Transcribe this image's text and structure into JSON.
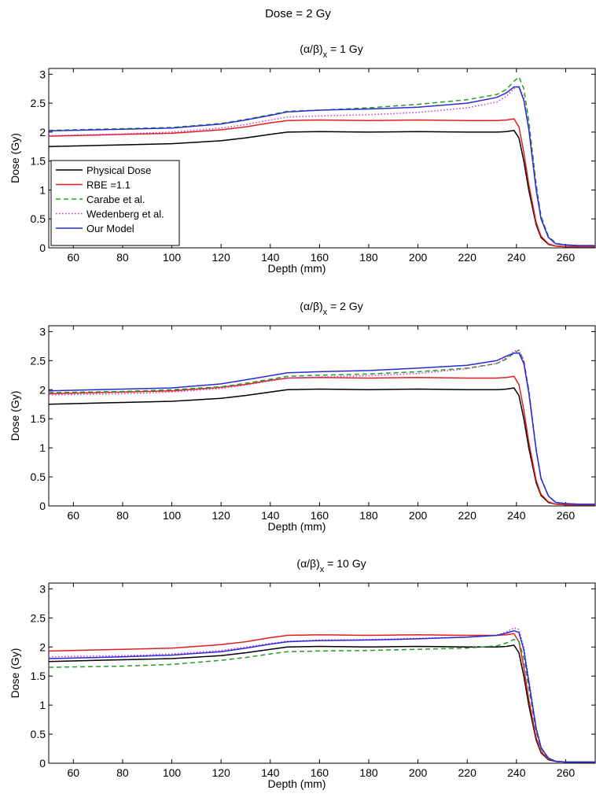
{
  "figure": {
    "title": "Dose = 2 Gy"
  },
  "colors": {
    "Physical Dose": "#000000",
    "RBE =1.1": "#e02020",
    "Carabe et al.": "#22a022",
    "Wedenberg et al.": "#cc33cc",
    "Our Model": "#2a2ad8"
  },
  "chart_data": [
    {
      "type": "line",
      "title": "(α/β)ₓ = 1 Gy",
      "xlabel": "Depth (mm)",
      "ylabel": "Dose (Gy)",
      "xlim": [
        50,
        272
      ],
      "ylim": [
        0,
        3.1
      ],
      "xticks": [
        60,
        80,
        100,
        120,
        140,
        160,
        180,
        200,
        220,
        240,
        260
      ],
      "yticks": [
        0,
        0.5,
        1,
        1.5,
        2,
        2.5,
        3
      ],
      "legend": "bottom-left",
      "x": [
        50,
        80,
        100,
        120,
        130,
        140,
        147,
        160,
        180,
        200,
        220,
        232,
        236,
        239,
        241,
        243,
        245,
        248,
        250,
        253,
        256,
        260,
        265,
        272
      ],
      "series": [
        {
          "name": "Physical Dose",
          "style": "solid",
          "values": [
            1.75,
            1.78,
            1.8,
            1.85,
            1.9,
            1.96,
            2.0,
            2.01,
            2.0,
            2.01,
            2.0,
            2.0,
            2.01,
            2.03,
            1.9,
            1.5,
            1.0,
            0.4,
            0.18,
            0.06,
            0.03,
            0.02,
            0.02,
            0.02
          ]
        },
        {
          "name": "RBE =1.1",
          "style": "solid",
          "values": [
            1.93,
            1.96,
            1.98,
            2.04,
            2.09,
            2.16,
            2.2,
            2.21,
            2.2,
            2.21,
            2.2,
            2.2,
            2.21,
            2.23,
            2.09,
            1.65,
            1.1,
            0.44,
            0.2,
            0.07,
            0.03,
            0.02,
            0.02,
            0.02
          ]
        },
        {
          "name": "Carabe et al.",
          "style": "dashed",
          "values": [
            2.03,
            2.06,
            2.08,
            2.15,
            2.22,
            2.3,
            2.36,
            2.38,
            2.42,
            2.48,
            2.56,
            2.65,
            2.74,
            2.88,
            2.95,
            2.75,
            2.2,
            1.1,
            0.55,
            0.2,
            0.08,
            0.05,
            0.04,
            0.04
          ]
        },
        {
          "name": "Wedenberg et al.",
          "style": "dotted",
          "values": [
            1.94,
            1.97,
            2.0,
            2.07,
            2.13,
            2.21,
            2.26,
            2.28,
            2.3,
            2.34,
            2.42,
            2.52,
            2.62,
            2.75,
            2.8,
            2.6,
            2.1,
            1.05,
            0.52,
            0.18,
            0.07,
            0.05,
            0.04,
            0.04
          ]
        },
        {
          "name": "Our Model",
          "style": "solid",
          "values": [
            2.02,
            2.05,
            2.07,
            2.14,
            2.21,
            2.29,
            2.35,
            2.38,
            2.4,
            2.43,
            2.5,
            2.6,
            2.68,
            2.78,
            2.78,
            2.55,
            2.05,
            1.0,
            0.5,
            0.18,
            0.07,
            0.05,
            0.04,
            0.04
          ]
        }
      ]
    },
    {
      "type": "line",
      "title": "(α/β)ₓ = 2 Gy",
      "xlabel": "Depth (mm)",
      "ylabel": "Dose (Gy)",
      "xlim": [
        50,
        272
      ],
      "ylim": [
        0,
        3.1
      ],
      "xticks": [
        60,
        80,
        100,
        120,
        140,
        160,
        180,
        200,
        220,
        240,
        260
      ],
      "yticks": [
        0,
        0.5,
        1,
        1.5,
        2,
        2.5,
        3
      ],
      "x": [
        50,
        80,
        100,
        120,
        130,
        140,
        147,
        160,
        180,
        200,
        220,
        232,
        236,
        239,
        241,
        243,
        245,
        248,
        250,
        253,
        256,
        260,
        265,
        272
      ],
      "series": [
        {
          "name": "Physical Dose",
          "style": "solid",
          "values": [
            1.75,
            1.78,
            1.8,
            1.85,
            1.9,
            1.96,
            2.0,
            2.01,
            2.0,
            2.01,
            2.0,
            2.0,
            2.01,
            2.03,
            1.9,
            1.5,
            1.0,
            0.4,
            0.18,
            0.06,
            0.03,
            0.02,
            0.02,
            0.02
          ]
        },
        {
          "name": "RBE =1.1",
          "style": "solid",
          "values": [
            1.93,
            1.96,
            1.98,
            2.04,
            2.09,
            2.16,
            2.2,
            2.21,
            2.2,
            2.21,
            2.2,
            2.2,
            2.21,
            2.23,
            2.09,
            1.65,
            1.1,
            0.44,
            0.2,
            0.07,
            0.03,
            0.02,
            0.02,
            0.02
          ]
        },
        {
          "name": "Carabe et al.",
          "style": "dashed",
          "values": [
            1.95,
            1.97,
            2.0,
            2.05,
            2.11,
            2.18,
            2.23,
            2.25,
            2.27,
            2.31,
            2.37,
            2.45,
            2.53,
            2.63,
            2.68,
            2.5,
            2.0,
            0.98,
            0.48,
            0.17,
            0.06,
            0.04,
            0.03,
            0.03
          ]
        },
        {
          "name": "Wedenberg et al.",
          "style": "dotted",
          "values": [
            1.91,
            1.93,
            1.96,
            2.02,
            2.08,
            2.15,
            2.2,
            2.22,
            2.24,
            2.28,
            2.36,
            2.45,
            2.55,
            2.66,
            2.68,
            2.5,
            2.0,
            0.98,
            0.48,
            0.17,
            0.06,
            0.04,
            0.03,
            0.03
          ]
        },
        {
          "name": "Our Model",
          "style": "solid",
          "values": [
            1.98,
            2.01,
            2.03,
            2.1,
            2.17,
            2.24,
            2.29,
            2.31,
            2.33,
            2.37,
            2.42,
            2.5,
            2.58,
            2.63,
            2.63,
            2.45,
            1.95,
            0.96,
            0.47,
            0.17,
            0.06,
            0.04,
            0.03,
            0.03
          ]
        }
      ]
    },
    {
      "type": "line",
      "title": "(α/β)ₓ = 10 Gy",
      "xlabel": "Depth (mm)",
      "ylabel": "Dose (Gy)",
      "xlim": [
        50,
        272
      ],
      "ylim": [
        0,
        3.1
      ],
      "xticks": [
        60,
        80,
        100,
        120,
        140,
        160,
        180,
        200,
        220,
        240,
        260
      ],
      "yticks": [
        0,
        0.5,
        1,
        1.5,
        2,
        2.5,
        3
      ],
      "x": [
        50,
        80,
        100,
        120,
        130,
        140,
        147,
        160,
        180,
        200,
        220,
        232,
        236,
        239,
        241,
        243,
        245,
        248,
        250,
        253,
        256,
        260,
        265,
        272
      ],
      "series": [
        {
          "name": "Physical Dose",
          "style": "solid",
          "values": [
            1.75,
            1.78,
            1.8,
            1.85,
            1.9,
            1.96,
            2.0,
            2.01,
            2.0,
            2.01,
            2.0,
            2.0,
            2.01,
            2.03,
            1.9,
            1.5,
            1.0,
            0.4,
            0.18,
            0.06,
            0.03,
            0.02,
            0.02,
            0.02
          ]
        },
        {
          "name": "RBE =1.1",
          "style": "solid",
          "values": [
            1.93,
            1.96,
            1.98,
            2.04,
            2.09,
            2.16,
            2.2,
            2.21,
            2.2,
            2.21,
            2.2,
            2.2,
            2.21,
            2.23,
            2.09,
            1.65,
            1.1,
            0.44,
            0.2,
            0.07,
            0.03,
            0.02,
            0.02,
            0.02
          ]
        },
        {
          "name": "Carabe et al.",
          "style": "dashed",
          "values": [
            1.65,
            1.67,
            1.7,
            1.77,
            1.82,
            1.88,
            1.92,
            1.93,
            1.94,
            1.96,
            1.98,
            2.02,
            2.07,
            2.13,
            2.1,
            1.8,
            1.3,
            0.55,
            0.25,
            0.08,
            0.03,
            0.02,
            0.02,
            0.02
          ]
        },
        {
          "name": "Wedenberg et al.",
          "style": "dotted",
          "values": [
            1.83,
            1.85,
            1.88,
            1.94,
            2.0,
            2.06,
            2.1,
            2.12,
            2.13,
            2.15,
            2.17,
            2.2,
            2.26,
            2.33,
            2.3,
            2.0,
            1.45,
            0.62,
            0.28,
            0.09,
            0.04,
            0.02,
            0.02,
            0.02
          ]
        },
        {
          "name": "Our Model",
          "style": "solid",
          "values": [
            1.8,
            1.83,
            1.86,
            1.92,
            1.98,
            2.05,
            2.09,
            2.11,
            2.12,
            2.14,
            2.17,
            2.2,
            2.24,
            2.28,
            2.25,
            1.95,
            1.4,
            0.6,
            0.27,
            0.09,
            0.03,
            0.02,
            0.02,
            0.02
          ]
        }
      ]
    }
  ]
}
